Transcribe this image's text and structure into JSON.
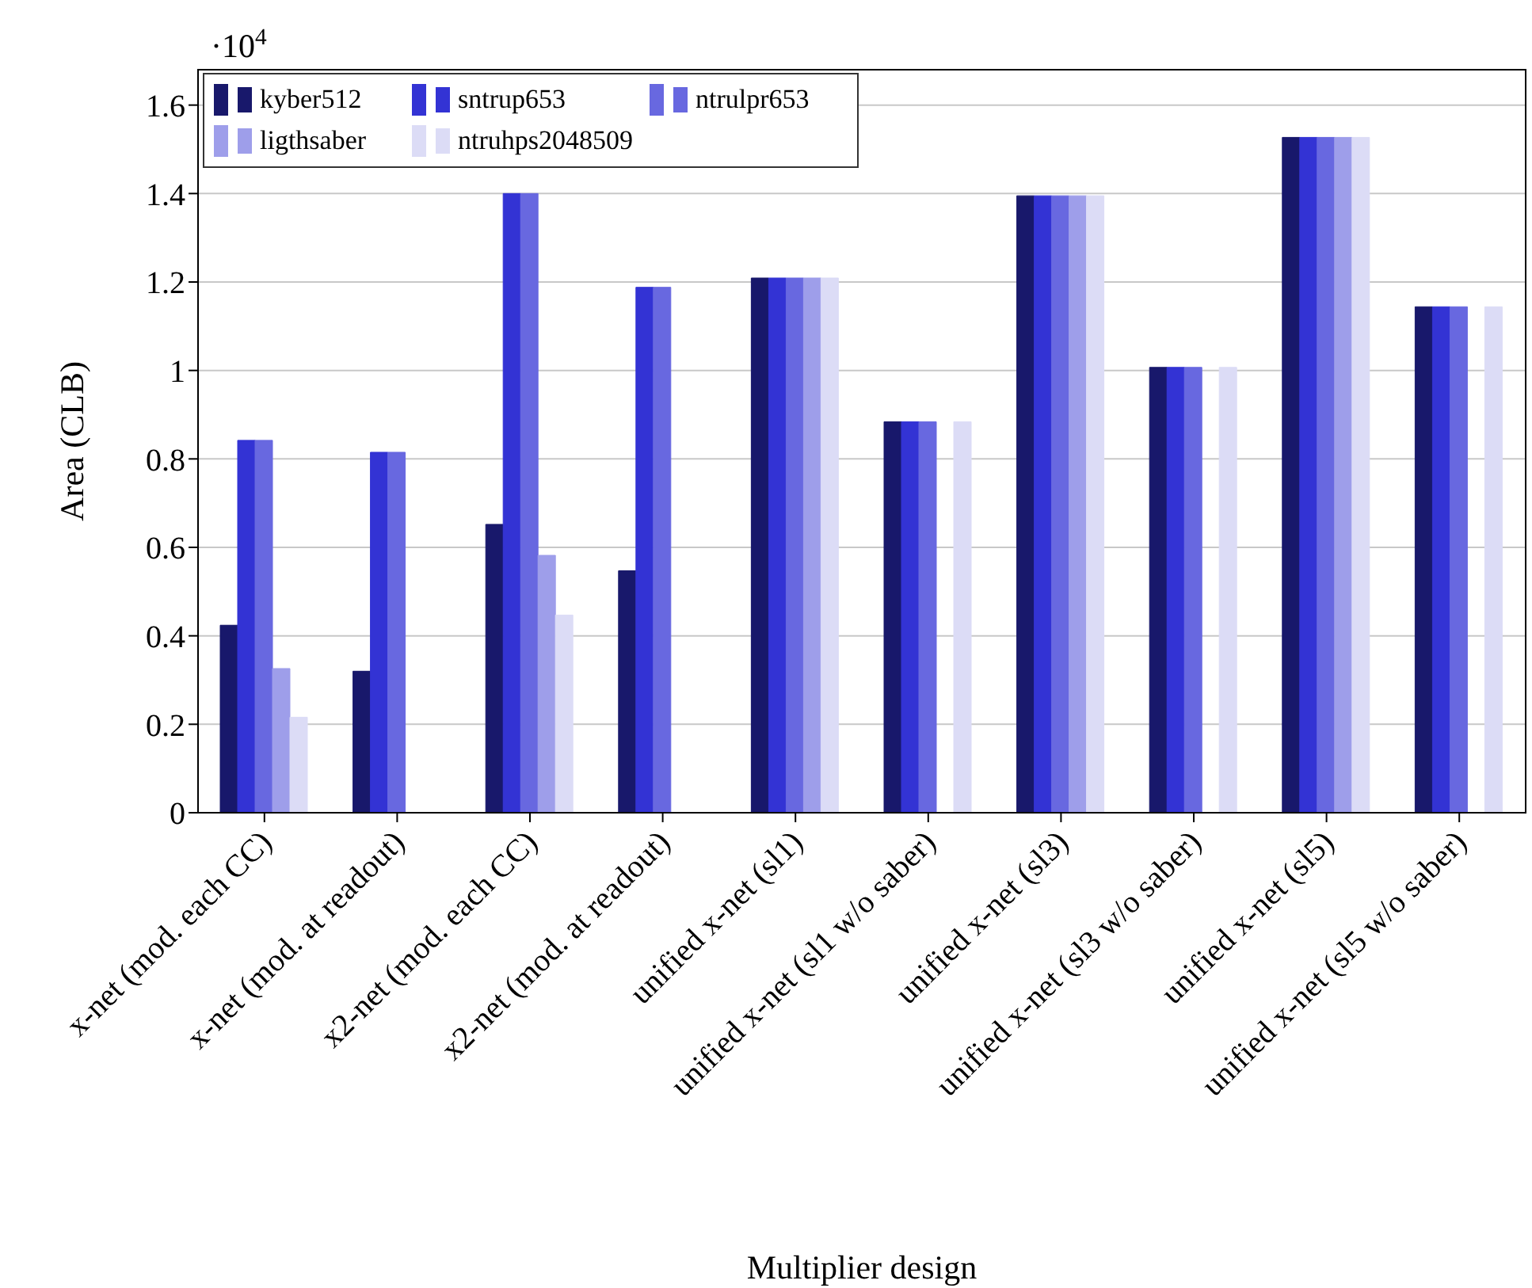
{
  "chart_data": {
    "type": "bar",
    "xlabel": "Multiplier design",
    "ylabel": "Area (CLB)",
    "annotations": [
      "·10$^{4}$"
    ],
    "categories": [
      "x-net (mod. each CC)",
      "x-net (mod. at readout)",
      "x2-net (mod. each CC)",
      "x2-net (mod. at readout)",
      "unified x-net (sl1)",
      "unified x-net (sl1 w/o saber)",
      "unified x-net (sl3)",
      "unified x-net (sl3 w/o saber)",
      "unified x-net (sl5)",
      "unified x-net (sl5 w/o saber)"
    ],
    "series": [
      {
        "name": "kyber512",
        "color": "#18186b",
        "values": [
          0.424,
          0.32,
          0.652,
          0.547,
          1.209,
          0.884,
          1.395,
          1.007,
          1.527,
          1.144
        ]
      },
      {
        "name": "sntrup653",
        "color": "#3333d4",
        "values": [
          0.842,
          0.815,
          1.4,
          1.188,
          1.209,
          0.884,
          1.395,
          1.007,
          1.527,
          1.144
        ]
      },
      {
        "name": "ntrulpr653",
        "color": "#6868e0",
        "values": [
          0.842,
          0.815,
          1.4,
          1.188,
          1.209,
          0.884,
          1.395,
          1.007,
          1.527,
          1.144
        ]
      },
      {
        "name": "ligthsaber",
        "color": "#9e9eea",
        "values": [
          0.326,
          0,
          0.582,
          0,
          1.209,
          0,
          1.395,
          0,
          1.527,
          0
        ]
      },
      {
        "name": "ntruhps2048509",
        "color": "#dcdcf6",
        "values": [
          0.216,
          0,
          0.447,
          0,
          1.209,
          0.884,
          1.395,
          1.007,
          1.527,
          1.144
        ]
      }
    ],
    "ylim": [
      0,
      1.68
    ],
    "yticks": [
      0,
      0.2,
      0.4,
      0.6,
      0.8,
      1,
      1.2,
      1.4,
      1.6
    ],
    "grid": "y",
    "legend": "top left"
  }
}
